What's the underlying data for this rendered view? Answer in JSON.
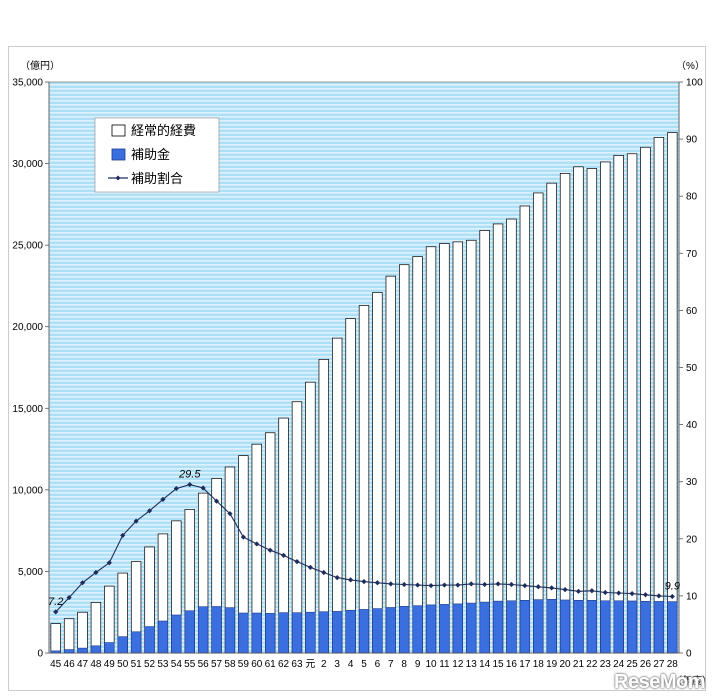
{
  "chart_data": {
    "type": "bar",
    "title": "",
    "ylabel_left": "（億円）",
    "ylabel_right": "（%）",
    "xlabel": "（年度）",
    "ylim_left": [
      0,
      35000
    ],
    "ylim_right": [
      0,
      100
    ],
    "yticks_left": [
      "0",
      "5,000",
      "10,000",
      "15,000",
      "20,000",
      "25,000",
      "30,000",
      "35,000"
    ],
    "yticks_right": [
      "0",
      "10",
      "20",
      "30",
      "40",
      "50",
      "60",
      "70",
      "80",
      "90",
      "100"
    ],
    "grid": false,
    "legend_position": "top-left",
    "categories": [
      "45",
      "46",
      "47",
      "48",
      "49",
      "50",
      "51",
      "52",
      "53",
      "54",
      "55",
      "56",
      "57",
      "58",
      "59",
      "60",
      "61",
      "62",
      "63",
      "元",
      "2",
      "3",
      "4",
      "5",
      "6",
      "7",
      "8",
      "9",
      "10",
      "11",
      "12",
      "13",
      "14",
      "15",
      "16",
      "17",
      "18",
      "19",
      "20",
      "21",
      "22",
      "23",
      "24",
      "25",
      "26",
      "27",
      "28"
    ],
    "series": [
      {
        "name": "経常的経費",
        "kind": "bar",
        "axis": "left",
        "color": "#ffffff",
        "values": [
          1800,
          2100,
          2500,
          3100,
          4100,
          4900,
          5600,
          6500,
          7300,
          8100,
          8800,
          9800,
          10700,
          11400,
          12100,
          12800,
          13500,
          14400,
          15400,
          16600,
          18000,
          19300,
          20500,
          21300,
          22100,
          23100,
          23800,
          24300,
          24900,
          25100,
          25200,
          25300,
          25900,
          26300,
          26600,
          27400,
          28200,
          28800,
          29400,
          29800,
          29700,
          30100,
          30500,
          30600,
          31000,
          31600,
          31900
        ]
      },
      {
        "name": "補助金",
        "kind": "bar",
        "axis": "left",
        "color": "#3b6fe0",
        "values": [
          130,
          210,
          300,
          440,
          640,
          1000,
          1300,
          1620,
          1960,
          2330,
          2590,
          2840,
          2850,
          2780,
          2450,
          2450,
          2430,
          2470,
          2470,
          2500,
          2530,
          2550,
          2620,
          2670,
          2720,
          2790,
          2860,
          2900,
          2950,
          2980,
          3010,
          3060,
          3120,
          3180,
          3200,
          3230,
          3270,
          3290,
          3250,
          3230,
          3230,
          3200,
          3200,
          3190,
          3170,
          3160,
          3150
        ]
      },
      {
        "name": "補助割合",
        "kind": "line",
        "axis": "right",
        "color": "#1f2d5c",
        "values": [
          7.2,
          9.7,
          12.3,
          14.1,
          15.8,
          20.6,
          23.1,
          24.9,
          26.9,
          28.8,
          29.5,
          28.9,
          26.6,
          24.4,
          20.3,
          19.1,
          18.0,
          17.1,
          16.0,
          15.0,
          14.1,
          13.2,
          12.8,
          12.5,
          12.3,
          12.1,
          12.0,
          11.9,
          11.8,
          11.9,
          11.9,
          12.1,
          12.0,
          12.1,
          12.0,
          11.8,
          11.6,
          11.4,
          11.1,
          10.8,
          10.9,
          10.6,
          10.5,
          10.4,
          10.2,
          10.0,
          9.9
        ]
      }
    ],
    "data_labels": [
      {
        "category": "45",
        "text": "7.2"
      },
      {
        "category": "55",
        "text": "29.5"
      },
      {
        "category": "28",
        "text": "9.9"
      }
    ]
  },
  "watermark": "ReseMom"
}
